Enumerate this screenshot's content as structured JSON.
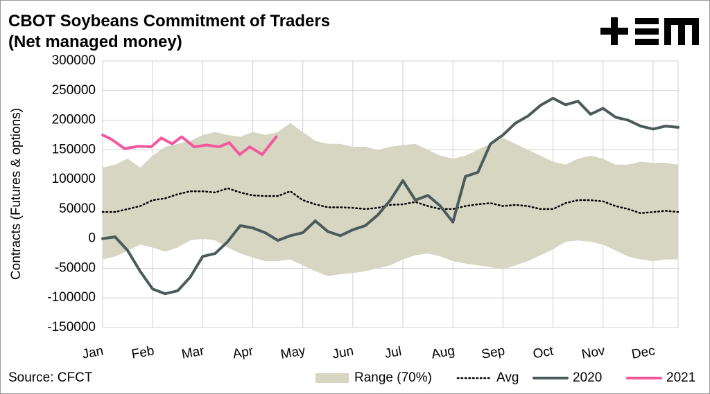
{
  "chart_data": {
    "type": "line",
    "title": "CBOT Soybeans Commitment of Traders (Net managed money)",
    "y_label": "Contracts (Futures & options)",
    "source": "Source: CFCT",
    "x": [
      0,
      0.25,
      0.5,
      0.75,
      1,
      1.25,
      1.5,
      1.75,
      2,
      2.25,
      2.5,
      2.75,
      3,
      3.25,
      3.5,
      3.75,
      4,
      4.25,
      4.5,
      4.75,
      5,
      5.25,
      5.5,
      5.75,
      6,
      6.25,
      6.5,
      6.75,
      7,
      7.25,
      7.5,
      7.75,
      8,
      8.25,
      8.5,
      8.75,
      9,
      9.25,
      9.5,
      9.75,
      10,
      10.25,
      10.5,
      10.75,
      11,
      11.25,
      11.5
    ],
    "xlim": [
      0,
      11.5
    ],
    "xticks": [
      {
        "value": 0,
        "label": "Jan"
      },
      {
        "value": 1,
        "label": "Feb"
      },
      {
        "value": 2,
        "label": "Mar"
      },
      {
        "value": 3,
        "label": "Apr"
      },
      {
        "value": 4,
        "label": "May"
      },
      {
        "value": 5,
        "label": "Jun"
      },
      {
        "value": 6,
        "label": "Jul"
      },
      {
        "value": 7,
        "label": "Aug"
      },
      {
        "value": 8,
        "label": "Sep"
      },
      {
        "value": 9,
        "label": "Oct"
      },
      {
        "value": 10,
        "label": "Nov"
      },
      {
        "value": 11,
        "label": "Dec"
      }
    ],
    "ylim": [
      -150000,
      300000
    ],
    "yticks": [
      -150000,
      -100000,
      -50000,
      0,
      50000,
      100000,
      150000,
      200000,
      250000,
      300000
    ],
    "grid": true,
    "series": [
      {
        "name": "Range (70%)",
        "kind": "range",
        "color": "#d6d6c3",
        "high": [
          120000,
          125000,
          135000,
          120000,
          140000,
          155000,
          160000,
          165000,
          175000,
          180000,
          175000,
          172000,
          180000,
          175000,
          180000,
          195000,
          180000,
          165000,
          160000,
          160000,
          155000,
          155000,
          150000,
          155000,
          158000,
          160000,
          150000,
          140000,
          135000,
          140000,
          150000,
          160000,
          170000,
          160000,
          150000,
          140000,
          130000,
          125000,
          135000,
          140000,
          135000,
          125000,
          125000,
          130000,
          128000,
          128000,
          125000
        ],
        "low": [
          -35000,
          -30000,
          -20000,
          -10000,
          -15000,
          -22000,
          -15000,
          -3000,
          0,
          -3000,
          -15000,
          -25000,
          -32000,
          -38000,
          -38000,
          -35000,
          -45000,
          -55000,
          -63000,
          -60000,
          -58000,
          -55000,
          -50000,
          -45000,
          -35000,
          -28000,
          -25000,
          -30000,
          -38000,
          -42000,
          -45000,
          -48000,
          -52000,
          -45000,
          -38000,
          -28000,
          -18000,
          -5000,
          -3000,
          -5000,
          -10000,
          -20000,
          -30000,
          -35000,
          -38000,
          -35000,
          -35000
        ]
      },
      {
        "name": "Avg",
        "kind": "dotted",
        "color": "#000000",
        "values": [
          45000,
          45000,
          50000,
          55000,
          65000,
          68000,
          75000,
          80000,
          80000,
          78000,
          85000,
          78000,
          73000,
          72000,
          72000,
          80000,
          65000,
          58000,
          53000,
          53000,
          52000,
          50000,
          52000,
          57000,
          58000,
          62000,
          55000,
          50000,
          50000,
          55000,
          58000,
          60000,
          55000,
          57000,
          55000,
          50000,
          50000,
          60000,
          65000,
          65000,
          63000,
          55000,
          50000,
          43000,
          45000,
          47000,
          45000
        ]
      },
      {
        "name": "2020",
        "kind": "line",
        "color": "#4b5b5b",
        "values": [
          0,
          3000,
          -20000,
          -55000,
          -85000,
          -93000,
          -88000,
          -65000,
          -30000,
          -25000,
          -5000,
          22000,
          18000,
          10000,
          -3000,
          5000,
          10000,
          30000,
          12000,
          5000,
          15000,
          22000,
          40000,
          65000,
          98000,
          65000,
          73000,
          55000,
          28000,
          105000,
          112000,
          160000,
          175000,
          195000,
          207000,
          225000,
          237000,
          226000,
          232000,
          210000,
          220000,
          205000,
          200000,
          190000,
          185000,
          190000,
          188000
        ]
      },
      {
        "name": "2021",
        "kind": "line",
        "color": "#f4589c",
        "x": [
          0,
          0.17,
          0.44,
          0.72,
          0.97,
          1.17,
          1.39,
          1.58,
          1.83,
          2.08,
          2.33,
          2.53,
          2.74,
          2.94,
          3.19,
          3.47
        ],
        "values": [
          175000,
          168000,
          152000,
          156000,
          155000,
          170000,
          160000,
          172000,
          155000,
          158000,
          155000,
          162000,
          142000,
          155000,
          142000,
          172000
        ]
      }
    ]
  }
}
